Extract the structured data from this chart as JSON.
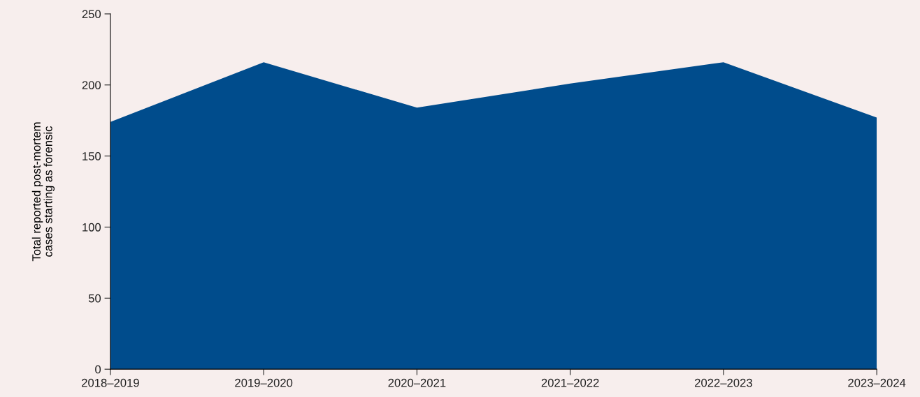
{
  "chart_data": {
    "type": "area",
    "ylabel": "Total reported post-mortem\ncases starting as forensic",
    "categories": [
      "2018–2019",
      "2019–2020",
      "2020–2021",
      "2021–2022",
      "2022–2023",
      "2023–2024"
    ],
    "series": [
      {
        "color": "#004c8c",
        "values": [
          174,
          216,
          184,
          201,
          216,
          177
        ]
      }
    ],
    "ylim": [
      0,
      250
    ],
    "yticks": [
      0,
      50,
      100,
      150,
      200,
      250
    ],
    "grid": false,
    "legend": false
  }
}
